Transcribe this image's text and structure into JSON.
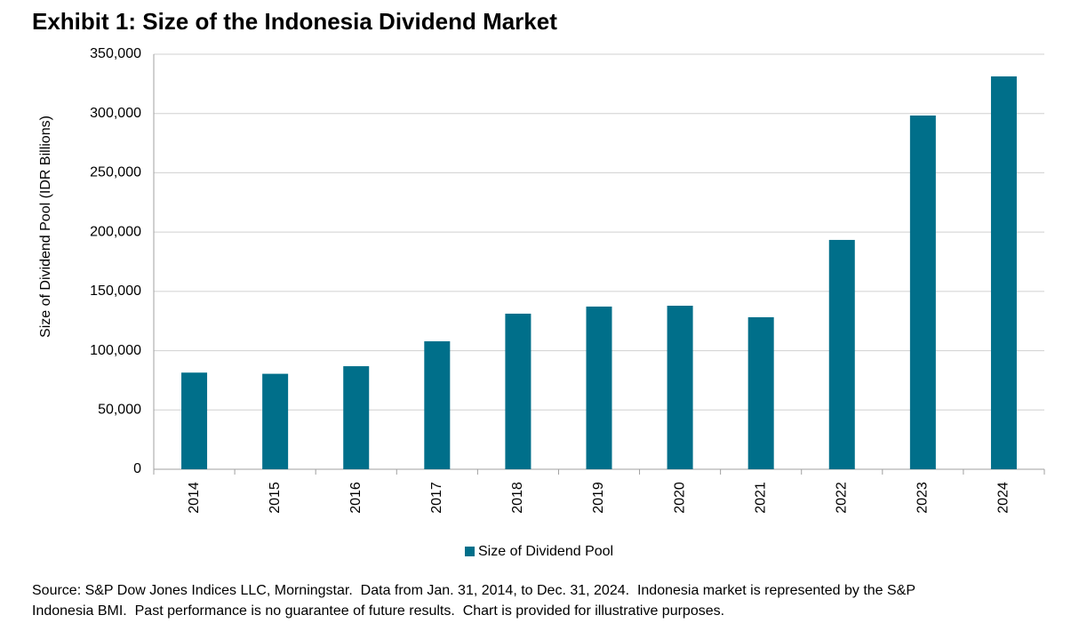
{
  "chart_data": {
    "type": "bar",
    "title": "Exhibit 1: Size of the Indonesia Dividend Market",
    "y_label": "Size of Dividend Pool (IDR Billions)",
    "categories": [
      "2014",
      "2015",
      "2016",
      "2017",
      "2018",
      "2019",
      "2020",
      "2021",
      "2022",
      "2023",
      "2024"
    ],
    "series": [
      {
        "name": "Size of Dividend Pool",
        "color": "#006f8a",
        "values": [
          81500,
          80500,
          86900,
          107900,
          131200,
          137200,
          137900,
          128200,
          193400,
          298300,
          331300
        ]
      }
    ],
    "ylim": [
      0,
      350000
    ],
    "yticks": [
      0,
      {
        "value": 50000,
        "label": "50,000"
      },
      {
        "value": 100000,
        "label": "100,000"
      },
      {
        "value": 150000,
        "label": "150,000"
      },
      {
        "value": 200000,
        "label": "200,000"
      },
      {
        "value": 250000,
        "label": "250,000"
      },
      {
        "value": 300000,
        "label": "300,000"
      },
      {
        "value": 350000,
        "label": "350,000"
      }
    ],
    "grid": true,
    "legend": "bottom",
    "footnote": [
      "Source: S&P Dow Jones Indices LLC, Morningstar.  Data from Jan. 31, 2014, to Dec. 31, 2024.  Indonesia market is represented by the S&P",
      "Indonesia BMI.  Past performance is no guarantee of future results.  Chart is provided for illustrative purposes."
    ]
  }
}
